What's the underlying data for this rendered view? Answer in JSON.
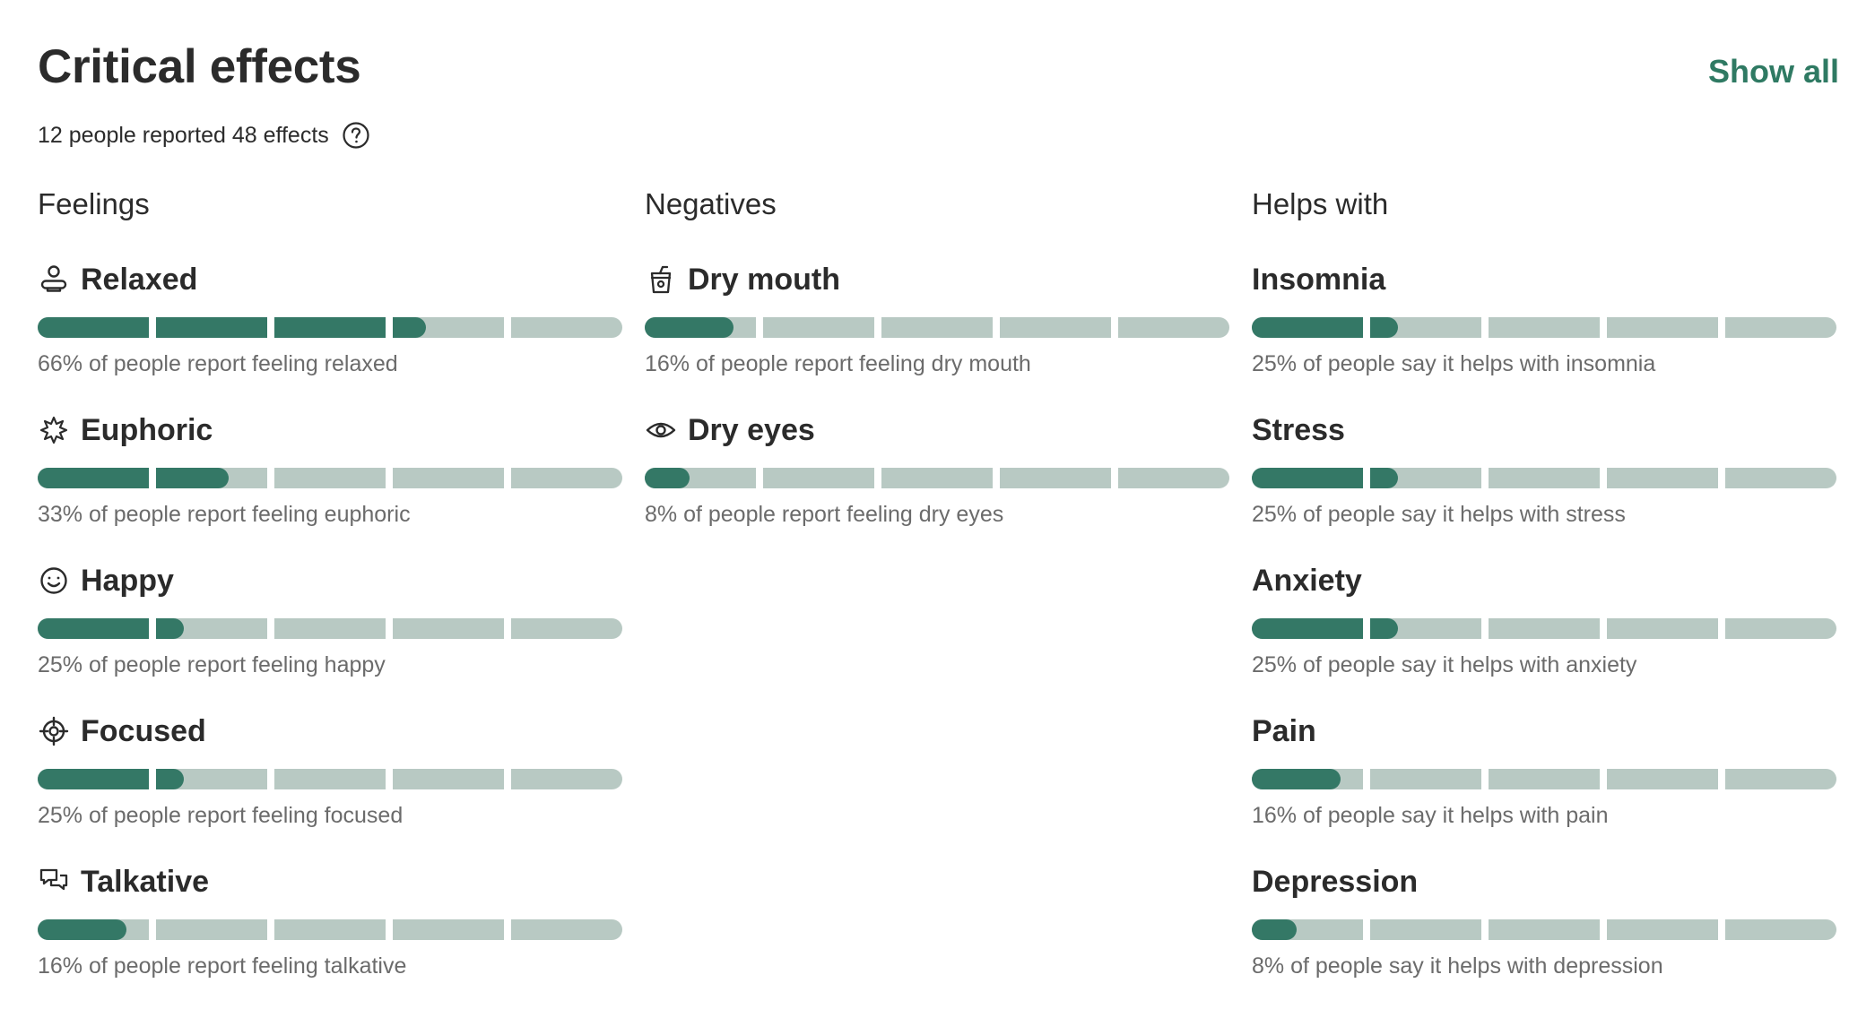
{
  "header": {
    "title": "Critical effects",
    "show_all": "Show all",
    "subtitle": "12 people reported 48 effects"
  },
  "colors": {
    "accent": "#347866",
    "track": "#b8c9c3",
    "link": "#2f7a63"
  },
  "columns": [
    {
      "heading": "Feelings",
      "effects": [
        {
          "name": "Relaxed",
          "icon": "person-icon",
          "percent": 66,
          "description": "66% of people report feeling relaxed"
        },
        {
          "name": "Euphoric",
          "icon": "sparkle-icon",
          "percent": 33,
          "description": "33% of people report feeling euphoric"
        },
        {
          "name": "Happy",
          "icon": "smile-icon",
          "percent": 25,
          "description": "25% of people report feeling happy"
        },
        {
          "name": "Focused",
          "icon": "target-icon",
          "percent": 25,
          "description": "25% of people report feeling focused"
        },
        {
          "name": "Talkative",
          "icon": "chat-icon",
          "percent": 16,
          "description": "16% of people report feeling talkative"
        }
      ]
    },
    {
      "heading": "Negatives",
      "effects": [
        {
          "name": "Dry mouth",
          "icon": "cup-icon",
          "percent": 16,
          "description": "16% of people report feeling dry mouth"
        },
        {
          "name": "Dry eyes",
          "icon": "eye-icon",
          "percent": 8,
          "description": "8% of people report feeling dry eyes"
        }
      ]
    },
    {
      "heading": "Helps with",
      "effects": [
        {
          "name": "Insomnia",
          "icon": "",
          "percent": 25,
          "description": "25% of people say it helps with insomnia"
        },
        {
          "name": "Stress",
          "icon": "",
          "percent": 25,
          "description": "25% of people say it helps with stress"
        },
        {
          "name": "Anxiety",
          "icon": "",
          "percent": 25,
          "description": "25% of people say it helps with anxiety"
        },
        {
          "name": "Pain",
          "icon": "",
          "percent": 16,
          "description": "16% of people say it helps with pain"
        },
        {
          "name": "Depression",
          "icon": "",
          "percent": 8,
          "description": "8% of people say it helps with depression"
        }
      ]
    }
  ]
}
